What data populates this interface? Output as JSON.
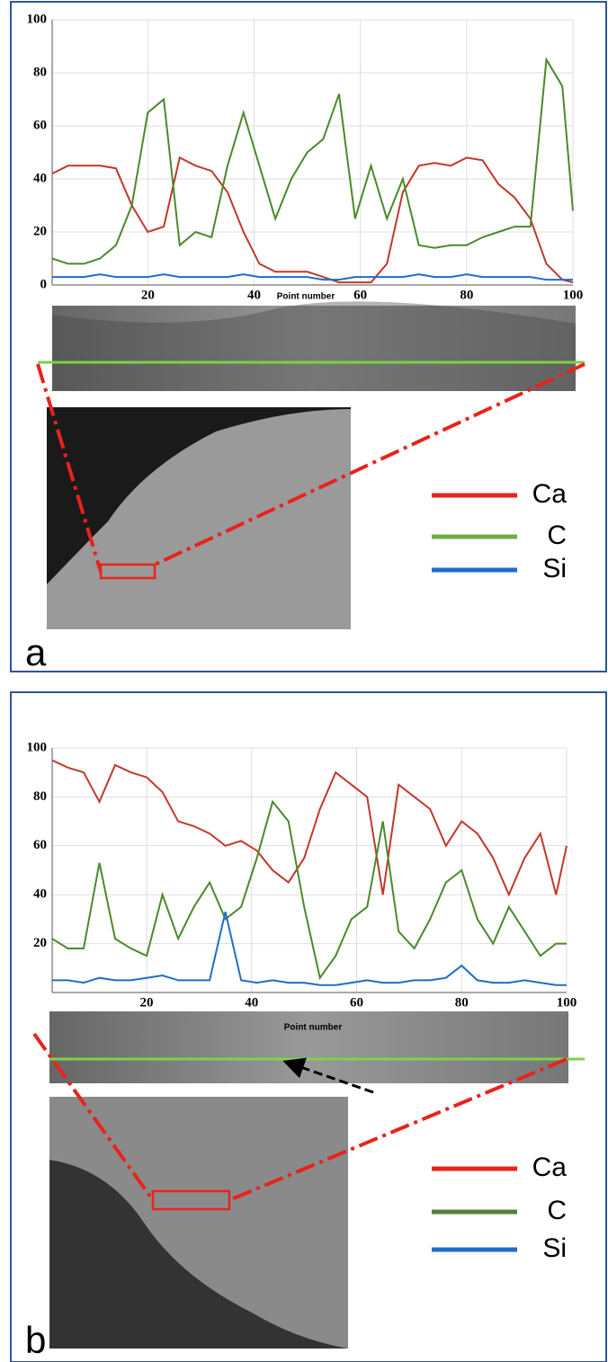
{
  "chart_data": [
    {
      "type": "line",
      "panel_label": "a",
      "x_label": "Point number",
      "x": [
        2,
        5,
        8,
        11,
        14,
        17,
        20,
        23,
        26,
        29,
        32,
        35,
        38,
        41,
        44,
        47,
        50,
        53,
        56,
        59,
        62,
        65,
        68,
        71,
        74,
        77,
        80,
        83,
        86,
        89,
        92,
        95,
        98,
        100
      ],
      "xlim": [
        2,
        100
      ],
      "ylim": [
        0,
        100
      ],
      "xticks": [
        20,
        40,
        60,
        80,
        100
      ],
      "yticks": [
        0,
        20,
        40,
        60,
        80,
        100
      ],
      "grid": true,
      "series": [
        {
          "name": "Ca",
          "color": "#c0392b",
          "legend_color": "#e8231c",
          "values": [
            42,
            45,
            45,
            45,
            44,
            30,
            20,
            22,
            48,
            45,
            43,
            35,
            20,
            8,
            5,
            5,
            5,
            3,
            1,
            1,
            1,
            8,
            35,
            45,
            46,
            45,
            48,
            47,
            38,
            33,
            25,
            8,
            2,
            1
          ]
        },
        {
          "name": "C",
          "color": "#4a8a2a",
          "legend_color": "#70ad47",
          "values": [
            10,
            8,
            8,
            10,
            15,
            30,
            65,
            70,
            15,
            20,
            18,
            45,
            65,
            45,
            25,
            40,
            50,
            55,
            72,
            25,
            45,
            25,
            40,
            15,
            14,
            15,
            15,
            18,
            20,
            22,
            22,
            85,
            75,
            28
          ]
        },
        {
          "name": "Si",
          "color": "#1e6ec8",
          "legend_color": "#1e6ec8",
          "values": [
            3,
            3,
            3,
            4,
            3,
            3,
            3,
            4,
            3,
            3,
            3,
            3,
            4,
            3,
            3,
            3,
            3,
            2,
            2,
            3,
            3,
            3,
            3,
            4,
            3,
            3,
            4,
            3,
            3,
            3,
            3,
            2,
            2,
            2
          ]
        }
      ]
    },
    {
      "type": "line",
      "panel_label": "b",
      "x_label": "Point number",
      "x": [
        2,
        5,
        8,
        11,
        14,
        17,
        20,
        23,
        26,
        29,
        32,
        35,
        38,
        41,
        44,
        47,
        50,
        53,
        56,
        59,
        62,
        65,
        68,
        71,
        74,
        77,
        80,
        83,
        86,
        89,
        92,
        95,
        98,
        100
      ],
      "xlim": [
        2,
        100
      ],
      "ylim": [
        0,
        100
      ],
      "xticks": [
        20,
        40,
        60,
        80,
        100
      ],
      "yticks": [
        20,
        40,
        60,
        80,
        100
      ],
      "grid": true,
      "series": [
        {
          "name": "Ca",
          "color": "#c0392b",
          "legend_color": "#e8231c",
          "values": [
            95,
            92,
            90,
            78,
            93,
            90,
            88,
            82,
            70,
            68,
            65,
            60,
            62,
            58,
            50,
            45,
            55,
            75,
            90,
            85,
            80,
            40,
            85,
            80,
            75,
            60,
            70,
            65,
            55,
            40,
            55,
            65,
            40,
            60
          ]
        },
        {
          "name": "C",
          "color": "#4a8a2a",
          "legend_color": "#548235",
          "values": [
            22,
            18,
            18,
            53,
            22,
            18,
            15,
            40,
            22,
            35,
            45,
            30,
            35,
            55,
            78,
            70,
            35,
            6,
            15,
            30,
            35,
            70,
            25,
            18,
            30,
            45,
            50,
            30,
            20,
            35,
            25,
            15,
            20,
            20
          ]
        },
        {
          "name": "Si",
          "color": "#1e6ec8",
          "legend_color": "#1e6ec8",
          "values": [
            5,
            5,
            4,
            6,
            5,
            5,
            6,
            7,
            5,
            5,
            5,
            33,
            5,
            4,
            5,
            4,
            4,
            3,
            3,
            4,
            5,
            4,
            4,
            5,
            5,
            6,
            11,
            5,
            4,
            4,
            5,
            4,
            3,
            3
          ]
        }
      ]
    }
  ]
}
